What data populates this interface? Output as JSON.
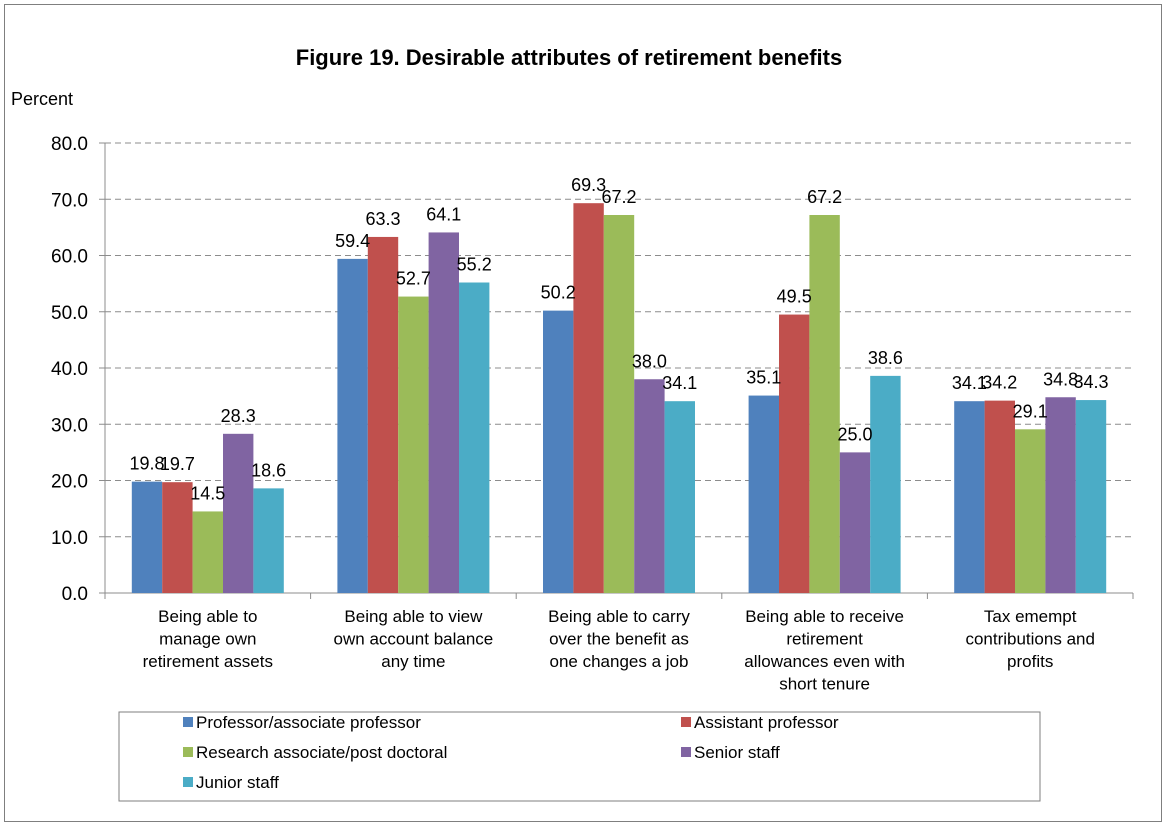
{
  "chart_data": {
    "type": "bar",
    "title": "Figure 19. Desirable attributes of retirement benefits",
    "ylabel": "Percent",
    "xlabel": "",
    "ylim": [
      0,
      80
    ],
    "yticks": [
      "0.0",
      "10.0",
      "20.0",
      "30.0",
      "40.0",
      "50.0",
      "60.0",
      "70.0",
      "80.0"
    ],
    "grid": true,
    "legend_position": "bottom",
    "categories": [
      [
        "Being able to",
        "manage own",
        "retirement assets"
      ],
      [
        "Being able to view",
        "own account balance",
        "any time"
      ],
      [
        "Being able to carry",
        "over the benefit as",
        "one changes a job"
      ],
      [
        "Being able to receive",
        "retirement",
        "allowances even with",
        "short tenure"
      ],
      [
        "Tax emempt",
        "contributions and",
        "profits"
      ]
    ],
    "series": [
      {
        "name": "Professor/associate professor",
        "color": "#4f81bd",
        "values": [
          19.8,
          59.4,
          50.2,
          35.1,
          34.1
        ],
        "labels": [
          "19.8",
          "59.4",
          "50.2",
          "35.1",
          "34.1"
        ]
      },
      {
        "name": "Assistant professor",
        "color": "#c0504d",
        "values": [
          19.7,
          63.3,
          69.3,
          49.5,
          34.2
        ],
        "labels": [
          "19.7",
          "63.3",
          "69.3",
          "49.5",
          "34.2"
        ]
      },
      {
        "name": "Research associate/post doctoral",
        "color": "#9bbb59",
        "values": [
          14.5,
          52.7,
          67.2,
          67.2,
          29.1
        ],
        "labels": [
          "14.5",
          "52.7",
          "67.2",
          "67.2",
          "29.1"
        ]
      },
      {
        "name": "Senior staff",
        "color": "#8064a2",
        "values": [
          28.3,
          64.1,
          38.0,
          25.0,
          34.8
        ],
        "labels": [
          "28.3",
          "64.1",
          "38.0",
          "25.0",
          "34.8"
        ]
      },
      {
        "name": "Junior staff",
        "color": "#4bacc6",
        "values": [
          18.6,
          55.2,
          34.1,
          38.6,
          34.3
        ],
        "labels": [
          "18.6",
          "55.2",
          "34.1",
          "38.6",
          "34.3"
        ]
      }
    ]
  }
}
